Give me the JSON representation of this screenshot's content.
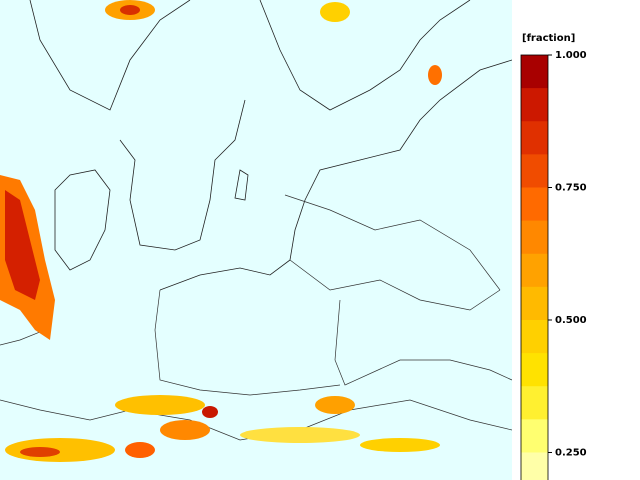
{
  "colorbar": {
    "label": "[fraction]",
    "lim": [
      0.1875,
      1.0
    ],
    "ticks": [
      {
        "value": 1.0,
        "label": "1.000"
      },
      {
        "value": 0.75,
        "label": "0.750"
      },
      {
        "value": 0.5,
        "label": "0.500"
      },
      {
        "value": 0.25,
        "label": "0.250"
      }
    ],
    "colors": [
      "#a80000",
      "#cc1800",
      "#e03000",
      "#f04c00",
      "#ff6a00",
      "#ff8800",
      "#ffa200",
      "#ffba00",
      "#ffd000",
      "#ffe200",
      "#fff030",
      "#ffff70",
      "#ffffa8"
    ]
  }
}
